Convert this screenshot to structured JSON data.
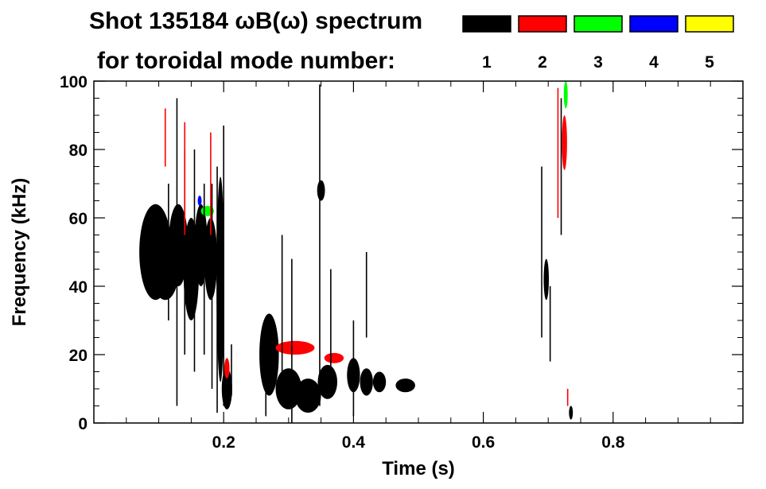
{
  "chart_data": {
    "type": "heatmap",
    "title": "Shot 135184 ωB(ω) spectrum",
    "subtitle": "for toroidal mode number:",
    "xlabel": "Time (s)",
    "ylabel": "Frequency (kHz)",
    "xlim": [
      0.0,
      1.0
    ],
    "ylim": [
      0,
      100
    ],
    "xticks": [
      {
        "value": 0.2,
        "label": "0.2"
      },
      {
        "value": 0.4,
        "label": "0.4"
      },
      {
        "value": 0.6,
        "label": "0.6"
      },
      {
        "value": 0.8,
        "label": "0.8"
      }
    ],
    "yticks": [
      {
        "value": 0,
        "label": "0"
      },
      {
        "value": 20,
        "label": "20"
      },
      {
        "value": 40,
        "label": "40"
      },
      {
        "value": 60,
        "label": "60"
      },
      {
        "value": 80,
        "label": "80"
      },
      {
        "value": 100,
        "label": "100"
      }
    ],
    "legend": {
      "placement": "top-right",
      "entries": [
        {
          "label": "1",
          "color": "#000000"
        },
        {
          "label": "2",
          "color": "#ff0000"
        },
        {
          "label": "3",
          "color": "#00ff00"
        },
        {
          "label": "4",
          "color": "#0000ff"
        },
        {
          "label": "5",
          "color": "#ffff00"
        }
      ]
    },
    "regions": [
      {
        "mode": "1",
        "t": 0.095,
        "f": 50,
        "dt": 0.025,
        "df": 14
      },
      {
        "mode": "1",
        "t": 0.11,
        "f": 44,
        "dt": 0.02,
        "df": 8
      },
      {
        "mode": "1",
        "t": 0.13,
        "f": 52,
        "dt": 0.015,
        "df": 12
      },
      {
        "mode": "1",
        "t": 0.15,
        "f": 45,
        "dt": 0.012,
        "df": 15
      },
      {
        "mode": "1",
        "t": 0.165,
        "f": 52,
        "dt": 0.01,
        "df": 12
      },
      {
        "mode": "1",
        "t": 0.18,
        "f": 48,
        "dt": 0.01,
        "df": 12
      },
      {
        "mode": "1",
        "t": 0.195,
        "f": 42,
        "dt": 0.006,
        "df": 30
      },
      {
        "mode": "1",
        "t": 0.205,
        "f": 10,
        "dt": 0.008,
        "df": 6
      },
      {
        "mode": "1",
        "t": 0.27,
        "f": 20,
        "dt": 0.015,
        "df": 12
      },
      {
        "mode": "1",
        "t": 0.3,
        "f": 10,
        "dt": 0.02,
        "df": 6
      },
      {
        "mode": "1",
        "t": 0.33,
        "f": 8,
        "dt": 0.02,
        "df": 5
      },
      {
        "mode": "1",
        "t": 0.36,
        "f": 12,
        "dt": 0.015,
        "df": 5
      },
      {
        "mode": "1",
        "t": 0.4,
        "f": 14,
        "dt": 0.01,
        "df": 5
      },
      {
        "mode": "1",
        "t": 0.42,
        "f": 12,
        "dt": 0.01,
        "df": 4
      },
      {
        "mode": "1",
        "t": 0.44,
        "f": 12,
        "dt": 0.01,
        "df": 3
      },
      {
        "mode": "1",
        "t": 0.48,
        "f": 11,
        "dt": 0.015,
        "df": 2
      },
      {
        "mode": "1",
        "t": 0.35,
        "f": 68,
        "dt": 0.006,
        "df": 3
      },
      {
        "mode": "1",
        "t": 0.697,
        "f": 42,
        "dt": 0.004,
        "df": 6
      },
      {
        "mode": "1",
        "t": 0.735,
        "f": 3,
        "dt": 0.003,
        "df": 2
      },
      {
        "mode": "2",
        "t": 0.31,
        "f": 22,
        "dt": 0.03,
        "df": 2
      },
      {
        "mode": "2",
        "t": 0.37,
        "f": 19,
        "dt": 0.015,
        "df": 1.5
      },
      {
        "mode": "2",
        "t": 0.725,
        "f": 82,
        "dt": 0.004,
        "df": 8
      },
      {
        "mode": "2",
        "t": 0.205,
        "f": 16,
        "dt": 0.004,
        "df": 3
      },
      {
        "mode": "3",
        "t": 0.175,
        "f": 62,
        "dt": 0.01,
        "df": 1.5
      },
      {
        "mode": "3",
        "t": 0.727,
        "f": 96,
        "dt": 0.003,
        "df": 4
      },
      {
        "mode": "4",
        "t": 0.163,
        "f": 65,
        "dt": 0.003,
        "df": 1.5
      }
    ],
    "streaks": [
      {
        "mode": "1",
        "t": 0.128,
        "f0": 5,
        "f1": 95
      },
      {
        "mode": "1",
        "t": 0.115,
        "f0": 30,
        "f1": 70
      },
      {
        "mode": "1",
        "t": 0.14,
        "f0": 20,
        "f1": 80
      },
      {
        "mode": "1",
        "t": 0.155,
        "f0": 15,
        "f1": 80
      },
      {
        "mode": "1",
        "t": 0.17,
        "f0": 20,
        "f1": 70
      },
      {
        "mode": "1",
        "t": 0.182,
        "f0": 10,
        "f1": 70
      },
      {
        "mode": "1",
        "t": 0.19,
        "f0": 3,
        "f1": 75
      },
      {
        "mode": "1",
        "t": 0.2,
        "f0": 5,
        "f1": 87
      },
      {
        "mode": "1",
        "t": 0.212,
        "f0": 8,
        "f1": 23
      },
      {
        "mode": "1",
        "t": 0.265,
        "f0": 2,
        "f1": 30
      },
      {
        "mode": "1",
        "t": 0.29,
        "f0": 5,
        "f1": 55
      },
      {
        "mode": "1",
        "t": 0.305,
        "f0": 0,
        "f1": 48
      },
      {
        "mode": "1",
        "t": 0.348,
        "f0": 5,
        "f1": 99
      },
      {
        "mode": "1",
        "t": 0.365,
        "f0": 10,
        "f1": 45
      },
      {
        "mode": "1",
        "t": 0.42,
        "f0": 25,
        "f1": 50
      },
      {
        "mode": "1",
        "t": 0.4,
        "f0": 2,
        "f1": 30
      },
      {
        "mode": "1",
        "t": 0.69,
        "f0": 25,
        "f1": 75
      },
      {
        "mode": "1",
        "t": 0.703,
        "f0": 18,
        "f1": 40
      },
      {
        "mode": "1",
        "t": 0.72,
        "f0": 55,
        "f1": 95
      },
      {
        "mode": "2",
        "t": 0.11,
        "f0": 75,
        "f1": 92
      },
      {
        "mode": "2",
        "t": 0.14,
        "f0": 55,
        "f1": 88
      },
      {
        "mode": "2",
        "t": 0.18,
        "f0": 55,
        "f1": 85
      },
      {
        "mode": "2",
        "t": 0.715,
        "f0": 60,
        "f1": 98
      },
      {
        "mode": "2",
        "t": 0.73,
        "f0": 5,
        "f1": 10
      }
    ]
  }
}
